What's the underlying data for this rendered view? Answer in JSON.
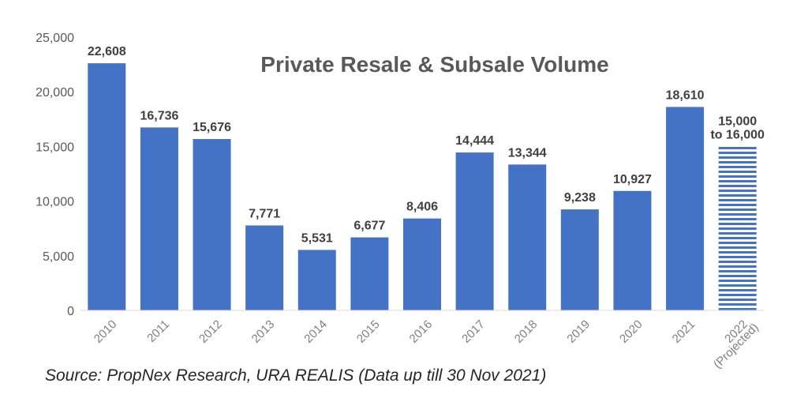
{
  "chart_data": {
    "type": "bar",
    "title": "Private Resale & Subsale Volume",
    "xlabel": "",
    "ylabel": "",
    "ylim": [
      0,
      25000
    ],
    "yticks": [
      "0",
      "5,000",
      "10,000",
      "15,000",
      "20,000",
      "25,000"
    ],
    "categories": [
      "2010",
      "2011",
      "2012",
      "2013",
      "2014",
      "2015",
      "2016",
      "2017",
      "2018",
      "2019",
      "2020",
      "2021",
      "2022 (Projected)"
    ],
    "category_labels": [
      [
        "2010"
      ],
      [
        "2011"
      ],
      [
        "2012"
      ],
      [
        "2013"
      ],
      [
        "2014"
      ],
      [
        "2015"
      ],
      [
        "2016"
      ],
      [
        "2017"
      ],
      [
        "2018"
      ],
      [
        "2019"
      ],
      [
        "2020"
      ],
      [
        "2021"
      ],
      [
        "2022",
        "(Projected)"
      ]
    ],
    "values": [
      22608,
      16736,
      15676,
      7771,
      5531,
      6677,
      8406,
      14444,
      13344,
      9238,
      10927,
      18610,
      15000
    ],
    "data_labels": [
      [
        "22,608"
      ],
      [
        "16,736"
      ],
      [
        "15,676"
      ],
      [
        "7,771"
      ],
      [
        "5,531"
      ],
      [
        "6,677"
      ],
      [
        "8,406"
      ],
      [
        "14,444"
      ],
      [
        "13,344"
      ],
      [
        "9,238"
      ],
      [
        "10,927"
      ],
      [
        "18,610"
      ],
      [
        "15,000",
        "to 16,000"
      ]
    ],
    "projected": [
      false,
      false,
      false,
      false,
      false,
      false,
      false,
      false,
      false,
      false,
      false,
      false,
      true
    ],
    "projected_range": [
      15000,
      16000
    ],
    "bar_color": "#4472C4",
    "grid": false,
    "legend": "none"
  },
  "source_text": "Source: PropNex Research, URA REALIS (Data up till 30 Nov 2021)"
}
